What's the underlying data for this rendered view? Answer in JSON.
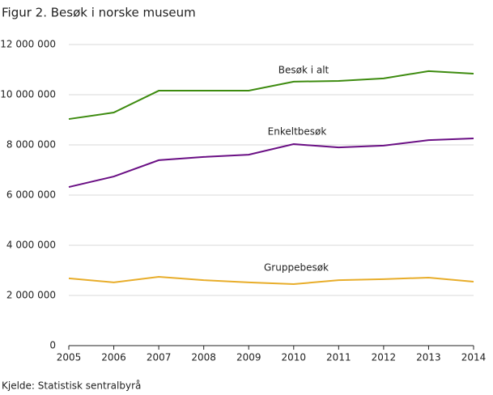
{
  "chart_data": {
    "type": "line",
    "title": "Figur 2. Besøk i norske museum",
    "source": "Kjelde: Statistisk sentralbyrå",
    "x": [
      2005,
      2006,
      2007,
      2008,
      2009,
      2010,
      2011,
      2012,
      2013,
      2014
    ],
    "xlim": [
      2005,
      2014
    ],
    "xticks": [
      2005,
      2006,
      2007,
      2008,
      2009,
      2010,
      2011,
      2012,
      2013,
      2014
    ],
    "ylim": [
      0,
      12000000
    ],
    "yticks": [
      0,
      {
        "value": 2000000,
        "label": "2 000 000"
      },
      {
        "value": 4000000,
        "label": "4 000 000"
      },
      {
        "value": 6000000,
        "label": "6 000 000"
      },
      {
        "value": 8000000,
        "label": "8 000 000"
      },
      {
        "value": 10000000,
        "label": "10 000 000"
      },
      {
        "value": 12000000,
        "label": "12 000 000"
      }
    ],
    "grid": true,
    "series": [
      {
        "name": "Besøk i alt",
        "color": "#3d8b0f",
        "values": [
          9030000,
          9290000,
          10160000,
          10160000,
          10160000,
          10520000,
          10550000,
          10650000,
          10940000,
          10840000
        ]
      },
      {
        "name": "Enkeltbesøk",
        "color": "#6a0f84",
        "values": [
          6320000,
          6740000,
          7390000,
          7520000,
          7610000,
          8030000,
          7900000,
          7970000,
          8190000,
          8260000
        ]
      },
      {
        "name": "Gruppebesøk",
        "color": "#e8ad2a",
        "values": [
          2680000,
          2520000,
          2740000,
          2610000,
          2520000,
          2450000,
          2610000,
          2650000,
          2710000,
          2550000
        ]
      }
    ]
  }
}
